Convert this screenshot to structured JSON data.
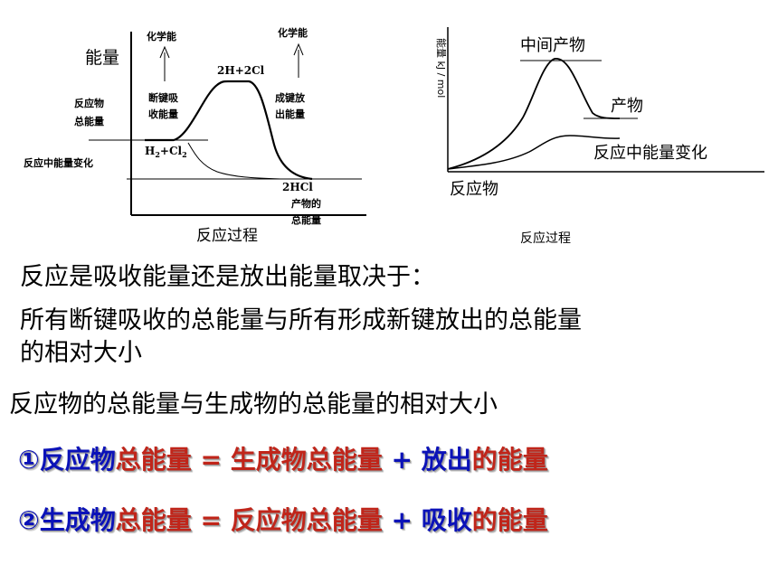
{
  "left_diagram": {
    "y_axis_label": "能量",
    "x_axis_label": "反应过程",
    "chem_energy_left": "化学能",
    "chem_energy_right": "化学能",
    "peak_label": "2H+2Cl",
    "reactant_label": "H",
    "reactant_sub1": "2",
    "reactant_plus": "+Cl",
    "reactant_sub2": "2",
    "product_label": "2HCl",
    "reactant_total_line1": "反应物",
    "reactant_total_line2": "总能量",
    "reaction_energy_change": "反应中能量变化",
    "bond_break_line1": "断键吸",
    "bond_break_line2": "收能量",
    "bond_form_line1": "成键放",
    "bond_form_line2": "出能量",
    "product_total_line1": "产物的",
    "product_total_line2": "总能量"
  },
  "right_diagram": {
    "y_axis_label": "能量  kJ / mol",
    "x_axis_label": "反应过程",
    "intermediate_label": "中间产物",
    "product_label": "产物",
    "energy_change_label": "反应中能量变化",
    "reactant_label": "反应物"
  },
  "text": {
    "line1": "反应是吸收能量还是放出能量取决于：",
    "line2a": "所有断键吸收的总能量与所有形成新键放出的总能量",
    "line2b": "的相对大小",
    "line3": "反应物的总能量与生成物的总能量的相对大小"
  },
  "equation1": {
    "num": "①",
    "a": "反应物",
    "b": "总能量",
    "eq": " = ",
    "c": "生成物总能量",
    "plus": " + ",
    "d": "放出",
    "e": "的能量"
  },
  "equation2": {
    "num": "②",
    "a": "生成物",
    "b": "总能量",
    "eq": " = ",
    "c": "反应物总能量",
    "plus": " + ",
    "d": "吸收",
    "e": "的能量"
  },
  "colors": {
    "blue": "#0b12b8",
    "red": "#c0251a"
  }
}
